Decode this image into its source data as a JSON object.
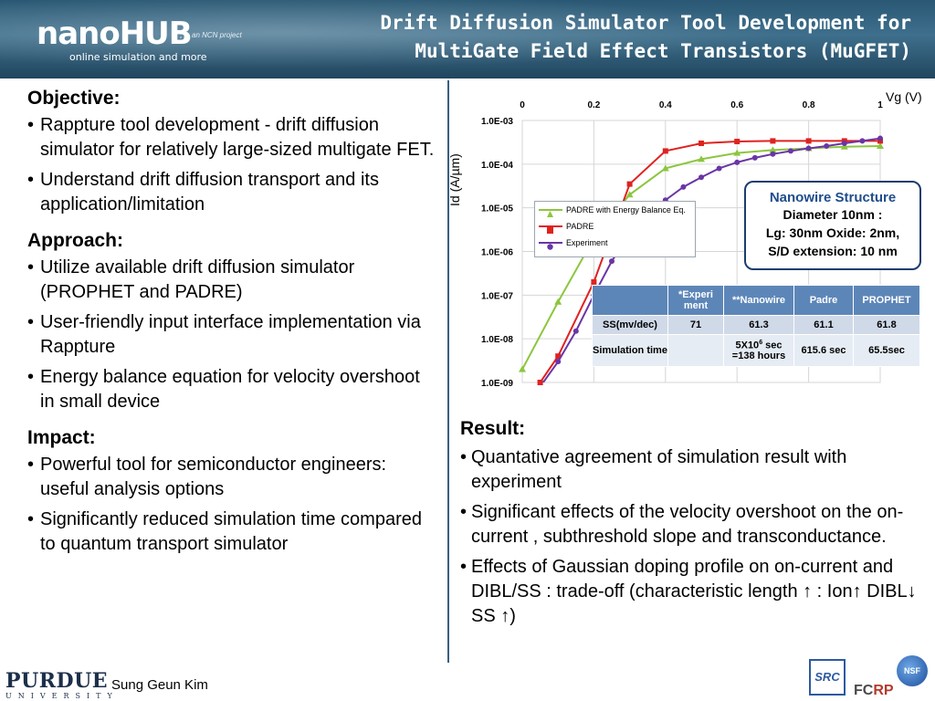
{
  "header": {
    "logo_main": "nanoHUB",
    "logo_sub": "online simulation and more",
    "ncn": "an NCN project",
    "title_line1": "Drift Diffusion Simulator Tool Development for",
    "title_line2": "MultiGate Field Effect Transistors (MuGFET)"
  },
  "objective": {
    "heading": "Objective:",
    "bullets": [
      "Rappture tool development  - drift diffusion simulator  for relatively large-sized multigate FET.",
      "Understand drift diffusion transport and its application/limitation"
    ]
  },
  "approach": {
    "heading": "Approach:",
    "bullets": [
      "Utilize available drift diffusion simulator (PROPHET and PADRE)",
      "User-friendly  input interface implementation via Rappture",
      "Energy balance equation for velocity overshoot in small device"
    ]
  },
  "impact": {
    "heading": "Impact:",
    "bullets": [
      "Powerful tool for semiconductor engineers: useful analysis options",
      "Significantly reduced simulation time compared to quantum transport simulator"
    ]
  },
  "chart_data": {
    "type": "line",
    "xlabel": "Vg (V)",
    "ylabel": "Id (A/µm)",
    "x_tick_labels": [
      "0",
      "0.2",
      "0.4",
      "0.6",
      "0.8",
      "1"
    ],
    "y_tick_labels": [
      "1.0E-03",
      "1.0E-04",
      "1.0E-05",
      "1.0E-06",
      "1.0E-07",
      "1.0E-08",
      "1.0E-09"
    ],
    "xlim": [
      0,
      1
    ],
    "ylim_log10": [
      -9,
      -3
    ],
    "y_scale": "log",
    "grid": true,
    "legend_position": "center-left",
    "series": [
      {
        "name": "PADRE with Energy Balance Eq.",
        "color": "#8cc63f",
        "marker": "triangle",
        "x": [
          0,
          0.1,
          0.2,
          0.3,
          0.4,
          0.5,
          0.6,
          0.7,
          0.8,
          0.9,
          1.0
        ],
        "y": [
          2e-09,
          7e-08,
          2e-06,
          2e-05,
          8e-05,
          0.00013,
          0.00018,
          0.00021,
          0.00023,
          0.00025,
          0.00026
        ]
      },
      {
        "name": "PADRE",
        "color": "#e0221f",
        "marker": "square",
        "x": [
          0.05,
          0.1,
          0.2,
          0.3,
          0.4,
          0.5,
          0.6,
          0.7,
          0.8,
          0.9,
          1.0
        ],
        "y": [
          1e-09,
          4e-09,
          2e-07,
          3.5e-05,
          0.0002,
          0.0003,
          0.00033,
          0.00034,
          0.00034,
          0.00034,
          0.00034
        ]
      },
      {
        "name": "Experiment",
        "color": "#6a35a6",
        "marker": "circle",
        "x": [
          0.05,
          0.1,
          0.15,
          0.2,
          0.25,
          0.3,
          0.35,
          0.4,
          0.45,
          0.5,
          0.55,
          0.6,
          0.65,
          0.7,
          0.75,
          0.8,
          0.85,
          0.9,
          0.95,
          1.0
        ],
        "y": [
          8e-10,
          3e-09,
          1.5e-08,
          1e-07,
          6e-07,
          2.5e-06,
          7e-06,
          1.5e-05,
          3e-05,
          5e-05,
          8e-05,
          0.00011,
          0.00014,
          0.00017,
          0.0002,
          0.00023,
          0.00026,
          0.0003,
          0.00034,
          0.00039
        ]
      }
    ]
  },
  "nanowire": {
    "title": "Nanowire Structure",
    "line1": "Diameter 10nm :",
    "line2": "Lg: 30nm Oxide: 2nm,",
    "line3": "S/D extension: 10 nm"
  },
  "table": {
    "headers": [
      "",
      "*Experi ment",
      "**Nanowire",
      "Padre",
      "PROPHET"
    ],
    "row1": [
      "SS(mv/dec)",
      "71",
      "61.3",
      "61.1",
      "61.8"
    ],
    "row2_label": "Simulation time",
    "row2_exp": "",
    "row2_nano_a": "5X10",
    "row2_nano_sup": "6",
    "row2_nano_b": " sec =138 hours",
    "row2_padre": "615.6 sec",
    "row2_prophet": "65.5sec"
  },
  "result": {
    "heading": "Result:",
    "bullets": [
      "Quantative agreement of simulation result with experiment",
      "Significant effects of the velocity overshoot on the on-current , subthreshold slope and transconductance.",
      "Effects of Gaussian doping profile on on-current  and DIBL/SS : trade-off (characteristic length ↑ : Ion↑ DIBL↓ SS ↑)"
    ]
  },
  "footer": {
    "purdue_top": "PURDUE",
    "purdue_bot": "UNIVERSITY",
    "author": "Sung Geun Kim",
    "src": "SRC",
    "fcrp_a": "FC",
    "fcrp_b": "RP",
    "nsf": "NSF"
  },
  "bullet_char": "•"
}
